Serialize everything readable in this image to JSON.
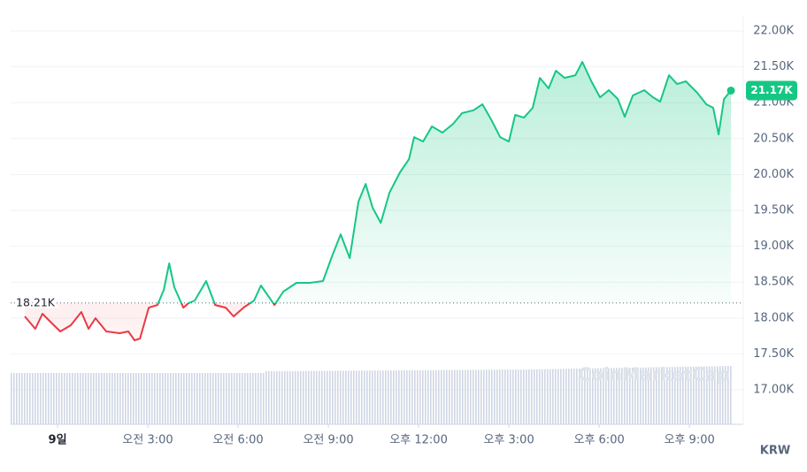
{
  "chart_data": {
    "type": "line",
    "x": [
      -1.09,
      -0.74,
      -0.5,
      -0.21,
      0.09,
      0.44,
      0.79,
      1.03,
      1.26,
      1.62,
      2.06,
      2.35,
      2.56,
      2.74,
      3.03,
      3.32,
      3.53,
      3.71,
      3.88,
      4.18,
      4.35,
      4.56,
      4.94,
      5.24,
      5.59,
      5.85,
      6.18,
      6.53,
      6.76,
      7.21,
      7.5,
      7.94,
      8.38,
      8.82,
      9.12,
      9.41,
      9.71,
      10,
      10.24,
      10.47,
      10.74,
      11.03,
      11.38,
      11.68,
      11.85,
      12.15,
      12.44,
      12.79,
      13.15,
      13.44,
      13.82,
      14.12,
      14.41,
      14.71,
      15,
      15.21,
      15.5,
      15.79,
      16.03,
      16.32,
      16.56,
      16.85,
      17.21,
      17.44,
      17.74,
      18.03,
      18.32,
      18.62,
      18.85,
      19.12,
      19.5,
      19.79,
      20.03,
      20.32,
      20.59,
      20.88,
      21.26,
      21.56,
      21.79,
      21.97,
      22.15,
      22.38
    ],
    "values": [
      18022,
      17850,
      18059,
      17936,
      17813,
      17899,
      18084,
      17850,
      17998,
      17813,
      17788,
      17813,
      17690,
      17714,
      18145,
      18182,
      18392,
      18761,
      18429,
      18145,
      18207,
      18244,
      18515,
      18182,
      18145,
      18022,
      18145,
      18244,
      18453,
      18182,
      18367,
      18490,
      18490,
      18515,
      18860,
      19167,
      18835,
      19623,
      19869,
      19537,
      19327,
      19746,
      20030,
      20214,
      20522,
      20460,
      20670,
      20584,
      20707,
      20855,
      20895,
      20978,
      20768,
      20522,
      20460,
      20830,
      20793,
      20929,
      21347,
      21200,
      21446,
      21347,
      21384,
      21569,
      21298,
      21076,
      21175,
      21052,
      20805,
      21101,
      21175,
      21076,
      21015,
      21384,
      21261,
      21298,
      21138,
      20978,
      20929,
      20559,
      21052,
      21170
    ],
    "up_color": "#16c784",
    "down_color": "#ea3943",
    "reference": {
      "value": 18210,
      "label": "18.21K"
    },
    "current": {
      "value": 21170,
      "label": "21.17K"
    },
    "xlim": [
      -1.56,
      22.79
    ],
    "xticks": [
      {
        "value": 0,
        "label": "9일"
      },
      {
        "value": 3,
        "label": "오전 3:00"
      },
      {
        "value": 6,
        "label": "오전 6:00"
      },
      {
        "value": 9,
        "label": "오전 9:00"
      },
      {
        "value": 12,
        "label": "오후 12:00"
      },
      {
        "value": 15,
        "label": "오후 3:00"
      },
      {
        "value": 18,
        "label": "오후 6:00"
      },
      {
        "value": 21,
        "label": "오후 9:00"
      }
    ],
    "ylim": [
      16520,
      22210
    ],
    "yticks": [
      {
        "value": 17000,
        "label": "17.00K"
      },
      {
        "value": 17500,
        "label": "17.50K"
      },
      {
        "value": 18000,
        "label": "18.00K"
      },
      {
        "value": 18500,
        "label": "18.50K"
      },
      {
        "value": 19000,
        "label": "19.00K"
      },
      {
        "value": 19500,
        "label": "19.50K"
      },
      {
        "value": 20000,
        "label": "20.00K"
      },
      {
        "value": 20500,
        "label": "20.50K"
      },
      {
        "value": 21000,
        "label": "21.00K"
      },
      {
        "value": 21500,
        "label": "21.50K"
      },
      {
        "value": 22000,
        "label": "22.00K"
      }
    ],
    "y_label": "KRW",
    "grid": true,
    "watermark": "CoinMarketCap"
  }
}
